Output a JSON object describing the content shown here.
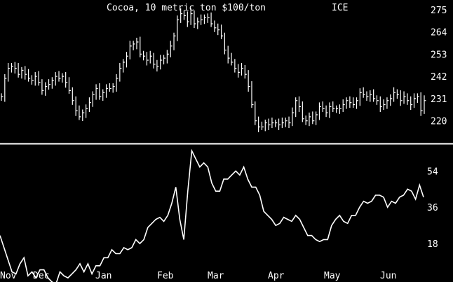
{
  "chart_data": [
    {
      "type": "ohlc",
      "title": "Cocoa, 10 metric ton $100/ton",
      "exchange": "ICE",
      "ylim": [
        214,
        277
      ],
      "yticks": [
        "275",
        "264",
        "253",
        "242",
        "231",
        "220"
      ],
      "x_labels": [
        "Nov",
        "Dec",
        "Jan",
        "Feb",
        "Mar",
        "Apr",
        "May",
        "Jun"
      ],
      "closes": [
        232,
        241,
        246,
        247,
        246,
        243,
        245,
        243,
        241,
        240,
        242,
        239,
        235,
        237,
        238,
        240,
        242,
        241,
        242,
        239,
        235,
        230,
        225,
        222,
        224,
        226,
        229,
        233,
        236,
        232,
        234,
        236,
        236,
        237,
        241,
        246,
        249,
        252,
        257,
        258,
        259,
        253,
        252,
        250,
        252,
        248,
        247,
        250,
        251,
        253,
        257,
        262,
        270,
        273,
        272,
        269,
        273,
        268,
        269,
        270,
        271,
        271,
        268,
        266,
        265,
        262,
        255,
        251,
        249,
        246,
        244,
        246,
        243,
        237,
        228,
        220,
        217,
        217,
        219,
        218,
        219,
        219,
        218,
        219,
        220,
        219,
        224,
        230,
        227,
        221,
        220,
        222,
        220,
        223,
        227,
        226,
        224,
        227,
        226,
        226,
        226,
        228,
        230,
        229,
        228,
        230,
        234,
        233,
        232,
        233,
        231,
        230,
        227,
        228,
        230,
        231,
        234,
        233,
        230,
        232,
        230,
        228,
        231,
        232,
        225,
        230
      ],
      "volume_yticks": [
        "54",
        "36",
        "18"
      ],
      "volume_ylim": [
        0,
        68
      ],
      "volume": [
        22,
        16,
        10,
        4,
        3,
        8,
        11,
        2,
        4,
        1,
        5,
        5,
        1,
        -1,
        -2,
        4,
        2,
        1,
        3,
        5,
        8,
        4,
        8,
        3,
        7,
        7,
        11,
        11,
        15,
        13,
        13,
        16,
        15,
        16,
        20,
        18,
        20,
        26,
        28,
        30,
        31,
        29,
        32,
        38,
        46,
        30,
        20,
        44,
        64,
        60,
        56,
        58,
        56,
        48,
        44,
        44,
        50,
        50,
        52,
        54,
        52,
        56,
        50,
        46,
        46,
        42,
        34,
        32,
        30,
        27,
        28,
        31,
        30,
        29,
        32,
        30,
        26,
        22,
        22,
        20,
        19,
        20,
        20,
        27,
        30,
        32,
        29,
        28,
        32,
        32,
        36,
        39,
        38,
        39,
        42,
        42,
        41,
        36,
        39,
        38,
        41,
        42,
        45,
        44,
        40,
        47,
        41
      ]
    }
  ]
}
